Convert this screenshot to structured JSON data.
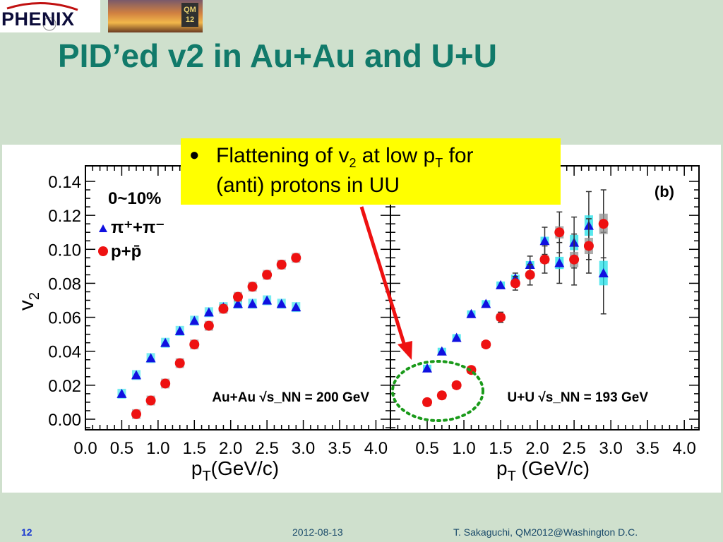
{
  "header": {
    "logo_text": "PHENIX",
    "photo_badge": "QM\n12"
  },
  "slide": {
    "title": "PID’ed v2 in Au+Au and U+U",
    "callout": {
      "line1_prefix": "Flattening of v",
      "line1_v_sub": "2",
      "line1_mid": " at low p",
      "line1_p_sub": "T",
      "line1_suffix": " for",
      "line2": "(anti) protons in UU"
    }
  },
  "footer": {
    "page_number": "12",
    "date": "2012-08-13",
    "author": "T. Sakaguchi, QM2012@Washington D.C."
  },
  "colors": {
    "pion": "#1010e0",
    "pion_sys": "#20e0e8",
    "proton": "#ee1111",
    "proton_sys": "#909090",
    "title": "#117a6a",
    "arrow": "#ee1111",
    "ellipse": "#1a9a1a"
  },
  "chart_data": [
    {
      "type": "scatter",
      "panel_label": "",
      "centrality_label": "0~10%",
      "system_label": "Au+Au √s_NN = 200 GeV",
      "xlabel": "p_T(GeV/c)",
      "ylabel": "v_2",
      "xlim": [
        0.0,
        4.2
      ],
      "ylim": [
        -0.005,
        0.145
      ],
      "xticks": [
        "0.0",
        "0.5",
        "1.0",
        "1.5",
        "2.0",
        "2.5",
        "3.0",
        "3.5",
        "4.0"
      ],
      "yticks": [
        "0.00",
        "0.02",
        "0.04",
        "0.06",
        "0.08",
        "0.10",
        "0.12",
        "0.14"
      ],
      "legend": [
        {
          "label": "π⁺+π⁻",
          "marker": "triangle"
        },
        {
          "label": "p+p̄",
          "marker": "circle"
        }
      ],
      "series": [
        {
          "name": "π⁺+π⁻",
          "marker": "triangle",
          "x": [
            0.5,
            0.7,
            0.9,
            1.1,
            1.3,
            1.5,
            1.7,
            1.9,
            2.1,
            2.3,
            2.5,
            2.7,
            2.9
          ],
          "y": [
            0.015,
            0.026,
            0.036,
            0.045,
            0.052,
            0.058,
            0.063,
            0.066,
            0.068,
            0.068,
            0.07,
            0.068,
            0.066
          ]
        },
        {
          "name": "p+p̄",
          "marker": "circle",
          "x": [
            0.7,
            0.9,
            1.1,
            1.3,
            1.5,
            1.7,
            1.9,
            2.1,
            2.3,
            2.5,
            2.7,
            2.9
          ],
          "y": [
            0.003,
            0.011,
            0.021,
            0.033,
            0.044,
            0.055,
            0.065,
            0.072,
            0.078,
            0.085,
            0.091,
            0.095
          ]
        }
      ]
    },
    {
      "type": "scatter",
      "panel_label": "(b)",
      "system_label": "U+U √s_NN = 193 GeV",
      "xlabel": "p_T (GeV/c)",
      "ylabel": "",
      "xlim": [
        0.0,
        4.2
      ],
      "ylim": [
        -0.005,
        0.145
      ],
      "xticks": [
        "0.5",
        "1.0",
        "1.5",
        "2.0",
        "2.5",
        "3.0",
        "3.5",
        "4.0"
      ],
      "series": [
        {
          "name": "π⁺+π⁻",
          "marker": "triangle",
          "x": [
            0.5,
            0.7,
            0.9,
            1.1,
            1.3,
            1.5,
            1.7,
            1.9,
            2.1,
            2.3,
            2.5,
            2.7,
            2.9
          ],
          "y": [
            0.03,
            0.04,
            0.048,
            0.062,
            0.068,
            0.079,
            0.083,
            0.091,
            0.105,
            0.092,
            0.104,
            0.114,
            0.086
          ],
          "err": [
            0.001,
            0.001,
            0.001,
            0.001,
            0.002,
            0.002,
            0.003,
            0.005,
            0.008,
            0.012,
            0.015,
            0.02,
            0.024
          ]
        },
        {
          "name": "p+p̄",
          "marker": "circle",
          "x": [
            0.5,
            0.7,
            0.9,
            1.1,
            1.3,
            1.5,
            1.7,
            1.9,
            2.1,
            2.3,
            2.5,
            2.7,
            2.9
          ],
          "y": [
            0.01,
            0.014,
            0.02,
            0.029,
            0.044,
            0.06,
            0.08,
            0.085,
            0.094,
            0.11,
            0.094,
            0.102,
            0.115
          ],
          "err": [
            0.001,
            0.001,
            0.001,
            0.002,
            0.002,
            0.003,
            0.004,
            0.006,
            0.008,
            0.012,
            0.015,
            0.016,
            0.02
          ]
        }
      ]
    }
  ]
}
